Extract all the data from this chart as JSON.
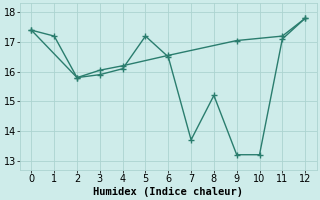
{
  "line1_x": [
    0,
    1,
    2,
    3,
    4,
    5,
    6,
    7,
    8,
    9,
    10,
    11,
    12
  ],
  "line1_y": [
    17.4,
    17.2,
    15.8,
    15.9,
    16.1,
    17.2,
    16.5,
    13.7,
    15.2,
    13.2,
    13.2,
    17.1,
    17.8
  ],
  "line2_x": [
    0,
    2,
    3,
    4,
    6,
    9,
    11,
    12
  ],
  "line2_y": [
    17.4,
    15.8,
    16.05,
    16.2,
    16.55,
    17.05,
    17.2,
    17.8
  ],
  "line_color": "#2a7d6e",
  "bg_color": "#ceecea",
  "grid_color": "#acd4d0",
  "xlabel": "Humidex (Indice chaleur)",
  "xlim": [
    -0.5,
    12.5
  ],
  "ylim": [
    12.7,
    18.3
  ],
  "yticks": [
    13,
    14,
    15,
    16,
    17,
    18
  ],
  "xticks": [
    0,
    1,
    2,
    3,
    4,
    5,
    6,
    7,
    8,
    9,
    10,
    11,
    12
  ],
  "xlabel_fontsize": 7.5,
  "tick_fontsize": 7
}
